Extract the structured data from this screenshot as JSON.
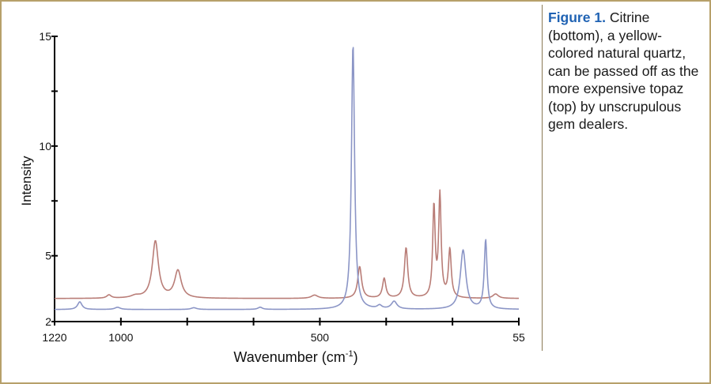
{
  "caption": {
    "label": "Figure 1.",
    "text": "Citrine (bottom), a yellow-colored natural quartz, can be passed off as the more expensive topaz (top) by unscrupulous gem dealers."
  },
  "colors": {
    "frame": "#b7a06a",
    "caption_label": "#1f62b3",
    "topaz": "#b97d77",
    "citrine": "#8b95c6"
  },
  "chart_data": {
    "type": "line",
    "xlabel_main": "Wavenumber (cm",
    "xlabel_sup": "-1",
    "xlabel_end": ")",
    "ylabel": "Intensity",
    "x_ticks": [
      {
        "pos": 0,
        "label": "1220"
      },
      {
        "pos": 1,
        "label": "1000"
      },
      {
        "pos": 2,
        "label": ""
      },
      {
        "pos": 3,
        "label": ""
      },
      {
        "pos": 4,
        "label": "500"
      },
      {
        "pos": 5,
        "label": ""
      },
      {
        "pos": 6,
        "label": ""
      },
      {
        "pos": 7,
        "label": "55"
      }
    ],
    "x_tick_count": 7,
    "y_ticks": [
      {
        "value": 2,
        "label": "2"
      },
      {
        "value": 5,
        "label": "5"
      },
      {
        "value": 7.5,
        "label": ""
      },
      {
        "value": 10,
        "label": "10"
      },
      {
        "value": 12.5,
        "label": ""
      },
      {
        "value": 15,
        "label": "15"
      }
    ],
    "ylim": [
      2,
      15
    ],
    "series": [
      {
        "color": "#b97d77",
        "baseline": 3.05,
        "peaks": [
          {
            "x": 0.82,
            "amp": 0.15,
            "w": 0.04
          },
          {
            "x": 1.22,
            "amp": 0.1,
            "w": 0.08
          },
          {
            "x": 1.52,
            "amp": 2.6,
            "w": 0.055
          },
          {
            "x": 1.86,
            "amp": 1.25,
            "w": 0.06
          },
          {
            "x": 3.92,
            "amp": 0.15,
            "w": 0.06
          },
          {
            "x": 4.6,
            "amp": 1.45,
            "w": 0.035
          },
          {
            "x": 4.97,
            "amp": 0.9,
            "w": 0.03
          },
          {
            "x": 5.3,
            "amp": 2.3,
            "w": 0.03
          },
          {
            "x": 5.72,
            "amp": 4.15,
            "w": 0.022
          },
          {
            "x": 5.81,
            "amp": 4.65,
            "w": 0.022
          },
          {
            "x": 5.96,
            "amp": 2.2,
            "w": 0.025
          },
          {
            "x": 6.65,
            "amp": 0.2,
            "w": 0.05
          }
        ]
      },
      {
        "color": "#8b95c6",
        "baseline": 2.55,
        "peaks": [
          {
            "x": 0.38,
            "amp": 0.35,
            "w": 0.04
          },
          {
            "x": 0.95,
            "amp": 0.1,
            "w": 0.05
          },
          {
            "x": 2.1,
            "amp": 0.08,
            "w": 0.05
          },
          {
            "x": 3.1,
            "amp": 0.1,
            "w": 0.04
          },
          {
            "x": 4.5,
            "amp": 12.1,
            "w": 0.028
          },
          {
            "x": 4.9,
            "amp": 0.15,
            "w": 0.04
          },
          {
            "x": 5.12,
            "amp": 0.35,
            "w": 0.05
          },
          {
            "x": 6.16,
            "amp": 2.7,
            "w": 0.05
          },
          {
            "x": 6.5,
            "amp": 3.15,
            "w": 0.025
          }
        ]
      }
    ]
  }
}
